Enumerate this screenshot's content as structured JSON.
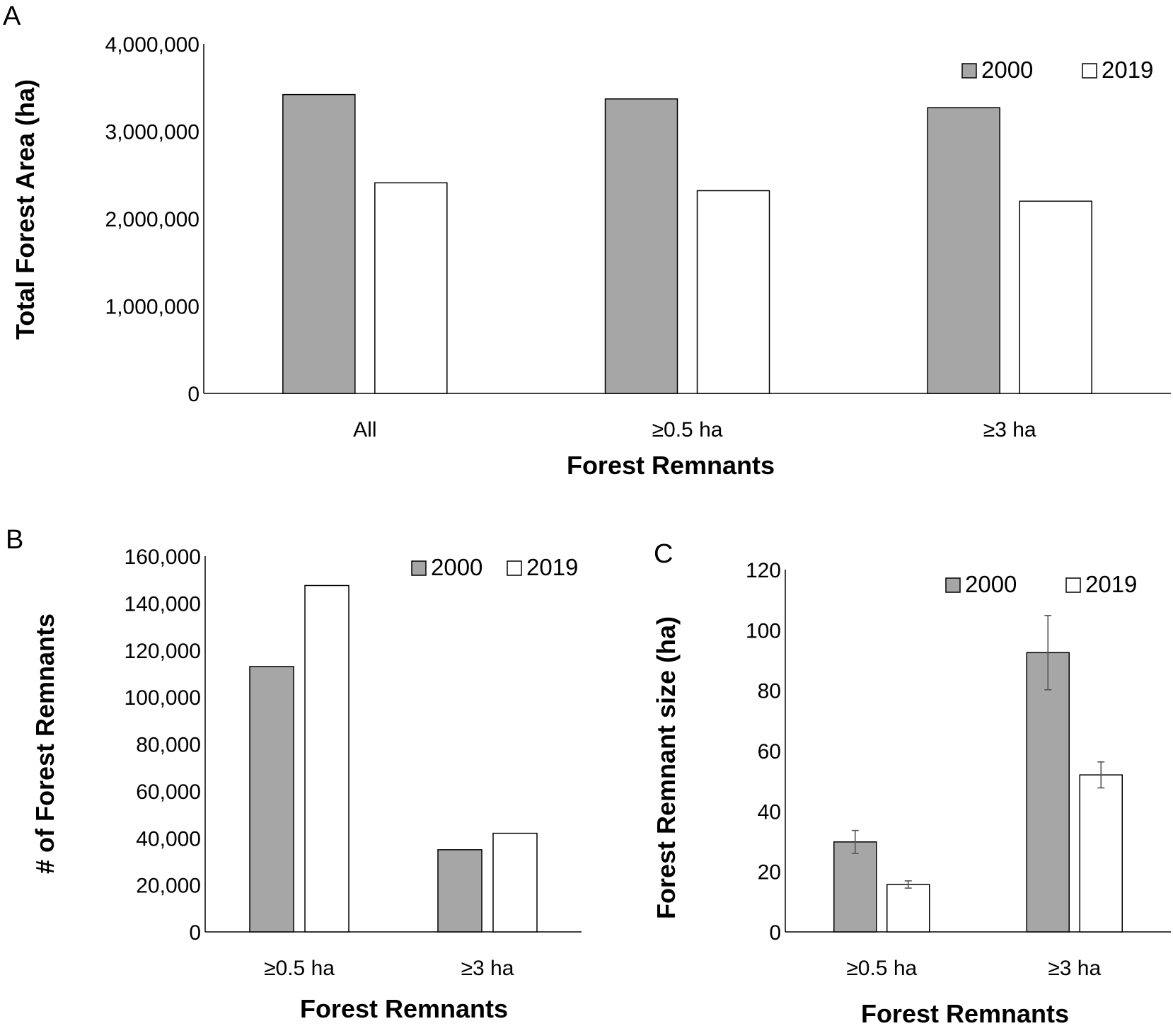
{
  "chart_data": [
    {
      "panel": "A",
      "type": "bar",
      "title": "",
      "categories": [
        "All",
        "≥0.5 ha",
        "≥3 ha"
      ],
      "series": [
        {
          "name": "2000",
          "color": "#a6a6a6",
          "values": [
            3420000,
            3370000,
            3270000
          ]
        },
        {
          "name": "2019",
          "color": "#ffffff",
          "values": [
            2410000,
            2320000,
            2200000
          ]
        }
      ],
      "xlabel": "Forest Remnants",
      "ylabel": "Total Forest Area (ha)",
      "ylim": [
        0,
        4000000
      ],
      "yticks": [
        0,
        1000000,
        2000000,
        3000000,
        4000000
      ],
      "ytick_labels": [
        "0",
        "1,000,000",
        "2,000,000",
        "3,000,000",
        "4,000,000"
      ],
      "legend": "top-right",
      "grid": false
    },
    {
      "panel": "B",
      "type": "bar",
      "title": "",
      "categories": [
        "≥0.5 ha",
        "≥3 ha"
      ],
      "series": [
        {
          "name": "2000",
          "color": "#a6a6a6",
          "values": [
            113000,
            35000
          ]
        },
        {
          "name": "2019",
          "color": "#ffffff",
          "values": [
            147500,
            42000
          ]
        }
      ],
      "xlabel": "Forest Remnants",
      "ylabel": "# of Forest Remnants",
      "ylim": [
        0,
        160000
      ],
      "yticks": [
        0,
        20000,
        40000,
        60000,
        80000,
        100000,
        120000,
        140000,
        160000
      ],
      "ytick_labels": [
        "0",
        "20,000",
        "40,000",
        "60,000",
        "80,000",
        "100,000",
        "120,000",
        "140,000",
        "160,000"
      ],
      "legend": "top-right",
      "grid": false
    },
    {
      "panel": "C",
      "type": "bar",
      "title": "",
      "categories": [
        "≥0.5 ha",
        "≥3 ha"
      ],
      "series": [
        {
          "name": "2000",
          "color": "#a6a6a6",
          "values": [
            29.8,
            92.5
          ],
          "error": [
            3.8,
            12.3
          ]
        },
        {
          "name": "2019",
          "color": "#ffffff",
          "values": [
            15.7,
            52
          ],
          "error": [
            1.2,
            4.3
          ]
        }
      ],
      "xlabel": "Forest Remnants",
      "ylabel": "Forest Remnant size (ha)",
      "ylim": [
        0,
        120
      ],
      "yticks": [
        0,
        20,
        40,
        60,
        80,
        100,
        120
      ],
      "ytick_labels": [
        "0",
        "20",
        "40",
        "60",
        "80",
        "100",
        "120"
      ],
      "legend": "top-right",
      "grid": false
    }
  ]
}
